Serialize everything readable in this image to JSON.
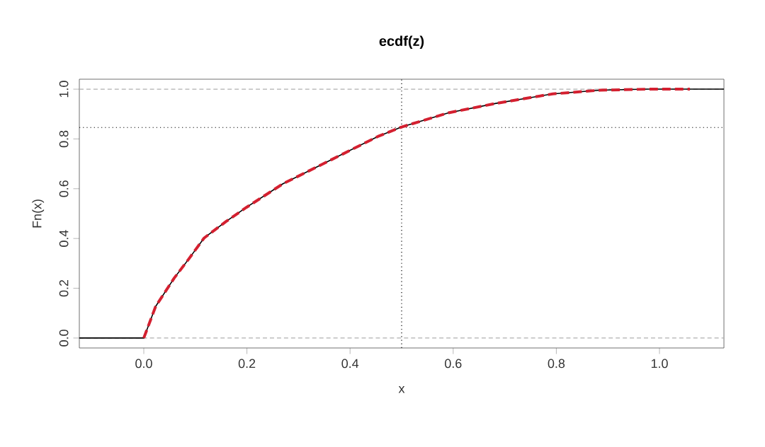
{
  "chart_data": {
    "type": "line",
    "title": "ecdf(z)",
    "xlabel": "x",
    "ylabel": "Fn(x)",
    "xlim": [
      -0.125,
      1.125
    ],
    "ylim": [
      -0.04,
      1.04
    ],
    "xticks": [
      {
        "value": 0,
        "label": "0.0"
      },
      0.2,
      0.4,
      0.6,
      0.8,
      {
        "value": 1,
        "label": "1.0"
      }
    ],
    "yticks": [
      {
        "value": 0,
        "label": "0.0"
      },
      0.2,
      0.4,
      0.6,
      0.8,
      {
        "value": 1,
        "label": "1.0"
      }
    ],
    "series": [
      {
        "color": "#000000",
        "line_style": "solid",
        "x": [
          -0.125,
          0,
          0.023,
          0.059,
          0.087,
          0.117,
          0.16,
          0.199,
          0.27,
          0.344,
          0.399,
          0.454,
          0.5,
          0.591,
          0.683,
          0.793,
          0.885,
          0.976,
          1.059,
          1.125
        ],
        "values": [
          0,
          0,
          0.127,
          0.241,
          0.317,
          0.402,
          0.469,
          0.525,
          0.62,
          0.696,
          0.753,
          0.81,
          0.848,
          0.905,
          0.943,
          0.981,
          0.996,
          1.0,
          1.0,
          1.0
        ]
      },
      {
        "color": "#d42030",
        "line_style": "dashed",
        "x": [
          0,
          0.023,
          0.059,
          0.087,
          0.117,
          0.16,
          0.199,
          0.27,
          0.344,
          0.399,
          0.454,
          0.5,
          0.591,
          0.683,
          0.793,
          0.885,
          0.976,
          1.059
        ],
        "values": [
          0,
          0.127,
          0.241,
          0.317,
          0.402,
          0.469,
          0.525,
          0.62,
          0.696,
          0.753,
          0.81,
          0.848,
          0.905,
          0.943,
          0.981,
          0.996,
          1.0,
          1.0
        ]
      }
    ],
    "ref_lines": [
      {
        "axis": "y",
        "value": 0,
        "color": "#b0b0b0",
        "line_style": "dashed"
      },
      {
        "axis": "y",
        "value": 1,
        "color": "#b0b0b0",
        "line_style": "dashed"
      },
      {
        "axis": "y",
        "value": 0.846,
        "color": "#000000",
        "line_style": "dotted"
      },
      {
        "axis": "x",
        "value": 0.5,
        "color": "#000000",
        "line_style": "dotted"
      }
    ]
  }
}
